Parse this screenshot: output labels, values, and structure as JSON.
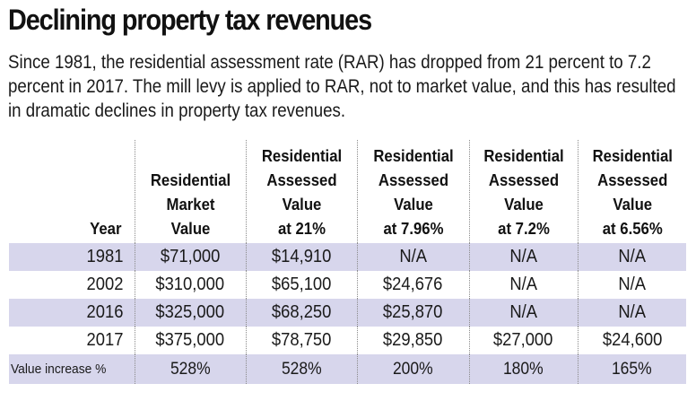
{
  "title": "Declining property tax revenues",
  "subtitle": "Since 1981, the residential assessment rate (RAR) has dropped from 21 percent to 7.2 percent in 2017. The mill levy is applied to RAR, not to market value, and this has resulted in dramatic declines in property tax revenues.",
  "colors": {
    "row_shade": "#d7d6ec",
    "divider": "#8a8a8a",
    "text": "#1a1a1a"
  },
  "chart_data": {
    "type": "table",
    "title": "Declining property tax revenues",
    "columns": [
      [
        "Year"
      ],
      [
        "Residential",
        "Market",
        "Value"
      ],
      [
        "Residential",
        "Assessed",
        "Value",
        "at 21%"
      ],
      [
        "Residential",
        "Assessed",
        "Value",
        "at 7.96%"
      ],
      [
        "Residential",
        "Assessed",
        "Value",
        "at 7.2%"
      ],
      [
        "Residential",
        "Assessed",
        "Value",
        "at 6.56%"
      ]
    ],
    "rows": [
      [
        "1981",
        "$71,000",
        "$14,910",
        "N/A",
        "N/A",
        "N/A"
      ],
      [
        "2002",
        "$310,000",
        "$65,100",
        "$24,676",
        "N/A",
        "N/A"
      ],
      [
        "2016",
        "$325,000",
        "$68,250",
        "$25,870",
        "N/A",
        "N/A"
      ],
      [
        "2017",
        "$375,000",
        "$78,750",
        "$29,850",
        "$27,000",
        "$24,600"
      ],
      [
        "Value increase %",
        "528%",
        "528%",
        "200%",
        "180%",
        "165%"
      ]
    ]
  }
}
